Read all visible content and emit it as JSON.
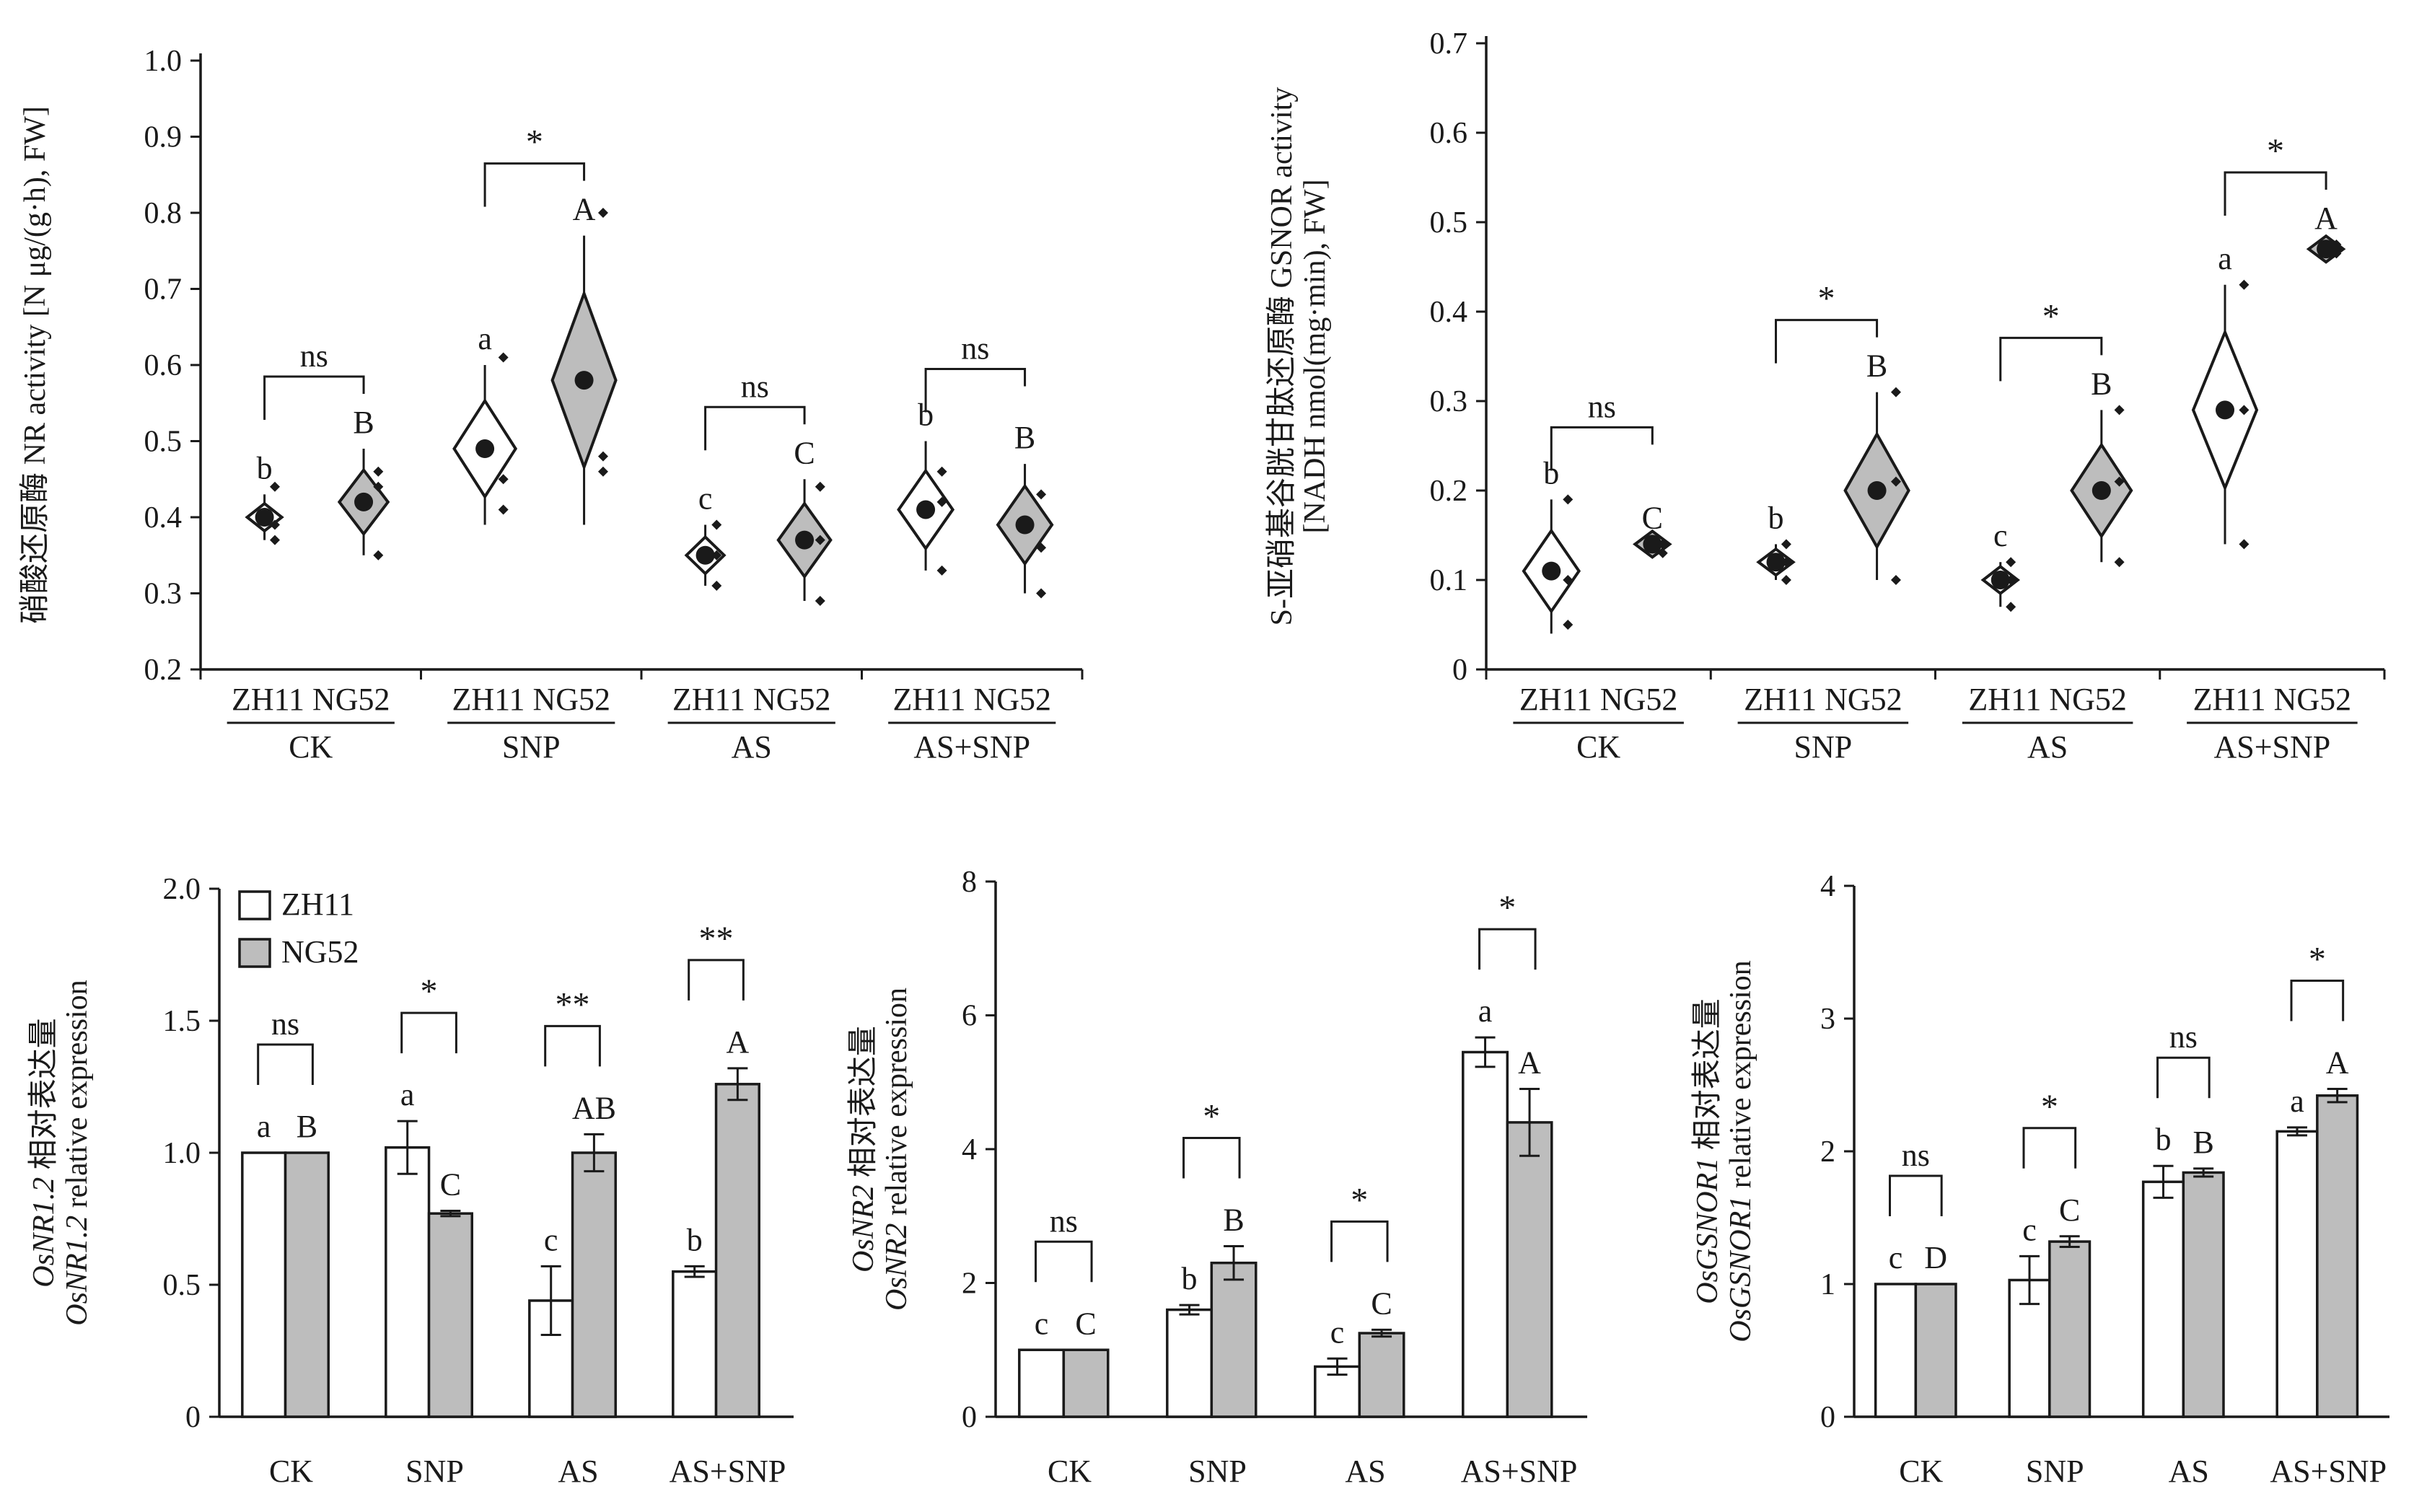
{
  "colors": {
    "zh11_fill": "#ffffff",
    "ng52_fill": "#bdbdbd",
    "axis": "#1a1a1a"
  },
  "chart_data": [
    {
      "id": "nr",
      "type": "violin",
      "ylabel_lines": [
        "硝酸还原酶 NR activity [N μg/(g·h), FW]"
      ],
      "ylim": [
        0.2,
        1.0
      ],
      "yticks": [
        "0.2",
        "0.3",
        "0.4",
        "0.5",
        "0.6",
        "0.7",
        "0.8",
        "0.9",
        "1.0"
      ],
      "groups": [
        "CK",
        "SNP",
        "AS",
        "AS+SNP"
      ],
      "genotypes": [
        "ZH11",
        "NG52"
      ],
      "means": [
        [
          0.4,
          0.42
        ],
        [
          0.49,
          0.58
        ],
        [
          0.35,
          0.37
        ],
        [
          0.41,
          0.39
        ]
      ],
      "ranges": [
        [
          [
            0.37,
            0.43
          ],
          [
            0.35,
            0.49
          ]
        ],
        [
          [
            0.39,
            0.6
          ],
          [
            0.39,
            0.77
          ]
        ],
        [
          [
            0.31,
            0.39
          ],
          [
            0.29,
            0.45
          ]
        ],
        [
          [
            0.33,
            0.5
          ],
          [
            0.3,
            0.47
          ]
        ]
      ],
      "points": [
        [
          [
            0.37,
            0.39,
            0.44
          ],
          [
            0.35,
            0.44,
            0.46
          ]
        ],
        [
          [
            0.41,
            0.45,
            0.61
          ],
          [
            0.46,
            0.48,
            0.8
          ]
        ],
        [
          [
            0.31,
            0.35,
            0.39
          ],
          [
            0.29,
            0.37,
            0.44
          ]
        ],
        [
          [
            0.33,
            0.42,
            0.46
          ],
          [
            0.3,
            0.36,
            0.43
          ]
        ]
      ],
      "letters": [
        [
          "b",
          "B"
        ],
        [
          "a",
          "A"
        ],
        [
          "c",
          "C"
        ],
        [
          "b",
          "B"
        ]
      ],
      "comparisons": [
        "ns",
        "*",
        "ns",
        "ns"
      ]
    },
    {
      "id": "gsnor",
      "type": "violin",
      "ylabel_lines": [
        "S-亚硝基谷胱甘肽还原酶 GSNOR activity",
        "[NADH nmol(mg·min), FW]"
      ],
      "ylim": [
        0,
        0.7
      ],
      "yticks": [
        "0",
        "0.1",
        "0.2",
        "0.3",
        "0.4",
        "0.5",
        "0.6",
        "0.7"
      ],
      "groups": [
        "CK",
        "SNP",
        "AS",
        "AS+SNP"
      ],
      "genotypes": [
        "ZH11",
        "NG52"
      ],
      "means": [
        [
          0.11,
          0.14
        ],
        [
          0.12,
          0.2
        ],
        [
          0.1,
          0.2
        ],
        [
          0.29,
          0.47
        ]
      ],
      "ranges": [
        [
          [
            0.04,
            0.19
          ],
          [
            0.13,
            0.14
          ]
        ],
        [
          [
            0.1,
            0.14
          ],
          [
            0.1,
            0.31
          ]
        ],
        [
          [
            0.07,
            0.12
          ],
          [
            0.12,
            0.29
          ]
        ],
        [
          [
            0.14,
            0.43
          ],
          [
            0.465,
            0.475
          ]
        ]
      ],
      "points": [
        [
          [
            0.05,
            0.1,
            0.19
          ],
          [
            0.13,
            0.14,
            0.14
          ]
        ],
        [
          [
            0.1,
            0.12,
            0.14
          ],
          [
            0.1,
            0.21,
            0.31
          ]
        ],
        [
          [
            0.07,
            0.1,
            0.12
          ],
          [
            0.12,
            0.21,
            0.29
          ]
        ],
        [
          [
            0.14,
            0.29,
            0.43
          ],
          [
            0.465,
            0.47,
            0.475
          ]
        ]
      ],
      "letters": [
        [
          "b",
          "C"
        ],
        [
          "b",
          "B"
        ],
        [
          "c",
          "B"
        ],
        [
          "a",
          "A"
        ]
      ],
      "comparisons": [
        "ns",
        "*",
        "*",
        "*"
      ]
    },
    {
      "id": "nr12",
      "type": "bar",
      "ylabel_lines": [
        [
          {
            "t": "OsNR1.2",
            "i": true
          },
          {
            "t": " 相对表达量",
            "i": false
          }
        ],
        [
          {
            "t": "OsNR1.2",
            "i": true
          },
          {
            "t": " relative expression",
            "i": false
          }
        ]
      ],
      "ylim": [
        0,
        2.0
      ],
      "yticks": [
        "0",
        "0.5",
        "1.0",
        "1.5",
        "2.0"
      ],
      "categories": [
        "CK",
        "SNP",
        "AS",
        "AS+SNP"
      ],
      "series": [
        {
          "name": "ZH11",
          "values": [
            1.0,
            1.02,
            0.44,
            0.55
          ],
          "errors": [
            0,
            0.1,
            0.13,
            0.02
          ]
        },
        {
          "name": "NG52",
          "values": [
            1.0,
            0.77,
            1.0,
            1.26
          ],
          "errors": [
            0,
            0.01,
            0.07,
            0.06
          ]
        }
      ],
      "letters": [
        [
          "a",
          "B"
        ],
        [
          "a",
          "C"
        ],
        [
          "c",
          "AB"
        ],
        [
          "b",
          "A"
        ]
      ],
      "comparisons": [
        "ns",
        "*",
        "**",
        "**"
      ],
      "legend": {
        "position": "top-left",
        "entries": [
          "ZH11",
          "NG52"
        ]
      }
    },
    {
      "id": "nr2",
      "type": "bar",
      "ylabel_lines": [
        [
          {
            "t": "OsNR2",
            "i": true
          },
          {
            "t": " 相对表达量",
            "i": false
          }
        ],
        [
          {
            "t": "OsNR2",
            "i": true
          },
          {
            "t": " relative expression",
            "i": false
          }
        ]
      ],
      "ylim": [
        0,
        8
      ],
      "yticks": [
        "0",
        "2",
        "4",
        "6",
        "8"
      ],
      "categories": [
        "CK",
        "SNP",
        "AS",
        "AS+SNP"
      ],
      "series": [
        {
          "name": "ZH11",
          "values": [
            1.0,
            1.6,
            0.75,
            5.45
          ],
          "errors": [
            0,
            0.07,
            0.12,
            0.22
          ]
        },
        {
          "name": "NG52",
          "values": [
            1.0,
            2.3,
            1.25,
            4.4
          ],
          "errors": [
            0,
            0.25,
            0.05,
            0.5
          ]
        }
      ],
      "letters": [
        [
          "c",
          "C"
        ],
        [
          "b",
          "B"
        ],
        [
          "c",
          "C"
        ],
        [
          "a",
          "A"
        ]
      ],
      "comparisons": [
        "ns",
        "*",
        "*",
        "*"
      ]
    },
    {
      "id": "gsnor1",
      "type": "bar",
      "ylabel_lines": [
        [
          {
            "t": "OsGSNOR1",
            "i": true
          },
          {
            "t": " 相对表达量",
            "i": false
          }
        ],
        [
          {
            "t": "OsGSNOR1",
            "i": true
          },
          {
            "t": " relative expression",
            "i": false
          }
        ]
      ],
      "ylim": [
        0,
        4
      ],
      "yticks": [
        "0",
        "1",
        "2",
        "3",
        "4"
      ],
      "categories": [
        "CK",
        "SNP",
        "AS",
        "AS+SNP"
      ],
      "series": [
        {
          "name": "ZH11",
          "values": [
            1.0,
            1.03,
            1.77,
            2.15
          ],
          "errors": [
            0,
            0.18,
            0.12,
            0.03
          ]
        },
        {
          "name": "NG52",
          "values": [
            1.0,
            1.32,
            1.84,
            2.42
          ],
          "errors": [
            0,
            0.04,
            0.03,
            0.05
          ]
        }
      ],
      "letters": [
        [
          "c",
          "D"
        ],
        [
          "c",
          "C"
        ],
        [
          "b",
          "B"
        ],
        [
          "a",
          "A"
        ]
      ],
      "comparisons": [
        "ns",
        "*",
        "ns",
        "*"
      ]
    }
  ]
}
